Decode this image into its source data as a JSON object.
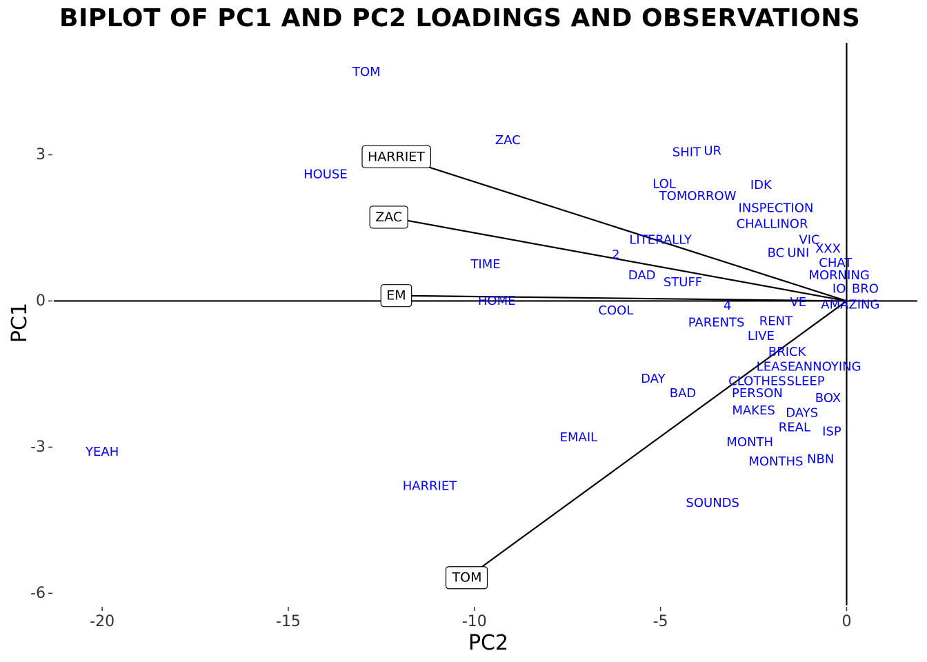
{
  "chart_data": {
    "type": "scatter",
    "title": "BIPLOT OF PC1 AND PC2 LOADINGS AND OBSERVATIONS",
    "xlabel": "PC2",
    "ylabel": "PC1",
    "xlim": [
      -21.3,
      1.9
    ],
    "ylim": [
      -6.25,
      5.3
    ],
    "xticks": [
      -20,
      -15,
      -10,
      -5,
      0
    ],
    "xtick_labels": [
      "-20",
      "-15",
      "-10",
      "-5",
      "0"
    ],
    "yticks": [
      3,
      0,
      -3,
      -6
    ],
    "ytick_labels": [
      "3",
      "0",
      "-3",
      "-6"
    ],
    "grid": false,
    "colors": {
      "observations": "#0000ff",
      "loadings": "#000000"
    },
    "loadings": [
      {
        "name": "HARRIET",
        "x": -12.1,
        "y": 2.96
      },
      {
        "name": "ZAC",
        "x": -12.3,
        "y": 1.72
      },
      {
        "name": "EM",
        "x": -12.1,
        "y": 0.11
      },
      {
        "name": "TOM",
        "x": -10.2,
        "y": -5.68
      }
    ],
    "observations": [
      {
        "label": "TOM",
        "x": -12.9,
        "y": 4.7
      },
      {
        "label": "ZAC",
        "x": -9.1,
        "y": 3.3
      },
      {
        "label": "SHIT",
        "x": -4.3,
        "y": 3.05
      },
      {
        "label": "UR",
        "x": -3.6,
        "y": 3.08
      },
      {
        "label": "HOUSE",
        "x": -14.0,
        "y": 2.6
      },
      {
        "label": "LOL",
        "x": -4.9,
        "y": 2.4
      },
      {
        "label": "IDK",
        "x": -2.3,
        "y": 2.38
      },
      {
        "label": "TOMORROW",
        "x": -4.0,
        "y": 2.15
      },
      {
        "label": "INSPECTION",
        "x": -1.9,
        "y": 1.9
      },
      {
        "label": "CHALLINOR",
        "x": -2.0,
        "y": 1.58
      },
      {
        "label": "LITERALLY",
        "x": -5.0,
        "y": 1.25
      },
      {
        "label": "VIC",
        "x": -1.0,
        "y": 1.25
      },
      {
        "label": "2",
        "x": -6.2,
        "y": 0.95
      },
      {
        "label": "BC",
        "x": -1.9,
        "y": 0.98
      },
      {
        "label": "UNI",
        "x": -1.3,
        "y": 0.98
      },
      {
        "label": "XXX",
        "x": -0.5,
        "y": 1.07
      },
      {
        "label": "TIME",
        "x": -9.7,
        "y": 0.75
      },
      {
        "label": "CHAT",
        "x": -0.3,
        "y": 0.78
      },
      {
        "label": "DAD",
        "x": -5.5,
        "y": 0.52
      },
      {
        "label": "MORNING",
        "x": -0.2,
        "y": 0.52
      },
      {
        "label": "STUFF",
        "x": -4.4,
        "y": 0.38
      },
      {
        "label": "IO",
        "x": -0.2,
        "y": 0.25
      },
      {
        "label": "BRO",
        "x": 0.5,
        "y": 0.25
      },
      {
        "label": "HOME",
        "x": -9.4,
        "y": 0.0
      },
      {
        "label": "VE",
        "x": -1.3,
        "y": -0.03
      },
      {
        "label": "AMAZING",
        "x": 0.1,
        "y": -0.08
      },
      {
        "label": "4",
        "x": -3.2,
        "y": -0.1
      },
      {
        "label": "COOL",
        "x": -6.2,
        "y": -0.2
      },
      {
        "label": "PARENTS",
        "x": -3.5,
        "y": -0.45
      },
      {
        "label": "RENT",
        "x": -1.9,
        "y": -0.42
      },
      {
        "label": "LIVE",
        "x": -2.3,
        "y": -0.72
      },
      {
        "label": "BRICK",
        "x": -1.6,
        "y": -1.05
      },
      {
        "label": "LEASE",
        "x": -1.9,
        "y": -1.35
      },
      {
        "label": "ANNOYING",
        "x": -0.5,
        "y": -1.35
      },
      {
        "label": "DAY",
        "x": -5.2,
        "y": -1.6
      },
      {
        "label": "CLOTHES",
        "x": -2.4,
        "y": -1.65
      },
      {
        "label": "SLEEP",
        "x": -1.1,
        "y": -1.65
      },
      {
        "label": "BAD",
        "x": -4.4,
        "y": -1.9
      },
      {
        "label": "PERSON",
        "x": -2.4,
        "y": -1.9
      },
      {
        "label": "BOX",
        "x": -0.5,
        "y": -2.0
      },
      {
        "label": "MAKES",
        "x": -2.5,
        "y": -2.25
      },
      {
        "label": "DAYS",
        "x": -1.2,
        "y": -2.3
      },
      {
        "label": "REAL",
        "x": -1.4,
        "y": -2.6
      },
      {
        "label": "ISP",
        "x": -0.4,
        "y": -2.68
      },
      {
        "label": "EMAIL",
        "x": -7.2,
        "y": -2.8
      },
      {
        "label": "MONTH",
        "x": -2.6,
        "y": -2.9
      },
      {
        "label": "YEAH",
        "x": -20.0,
        "y": -3.1
      },
      {
        "label": "MONTHS",
        "x": -1.9,
        "y": -3.3
      },
      {
        "label": "NBN",
        "x": -0.7,
        "y": -3.25
      },
      {
        "label": "HARRIET",
        "x": -11.2,
        "y": -3.8
      },
      {
        "label": "SOUNDS",
        "x": -3.6,
        "y": -4.15
      }
    ]
  }
}
